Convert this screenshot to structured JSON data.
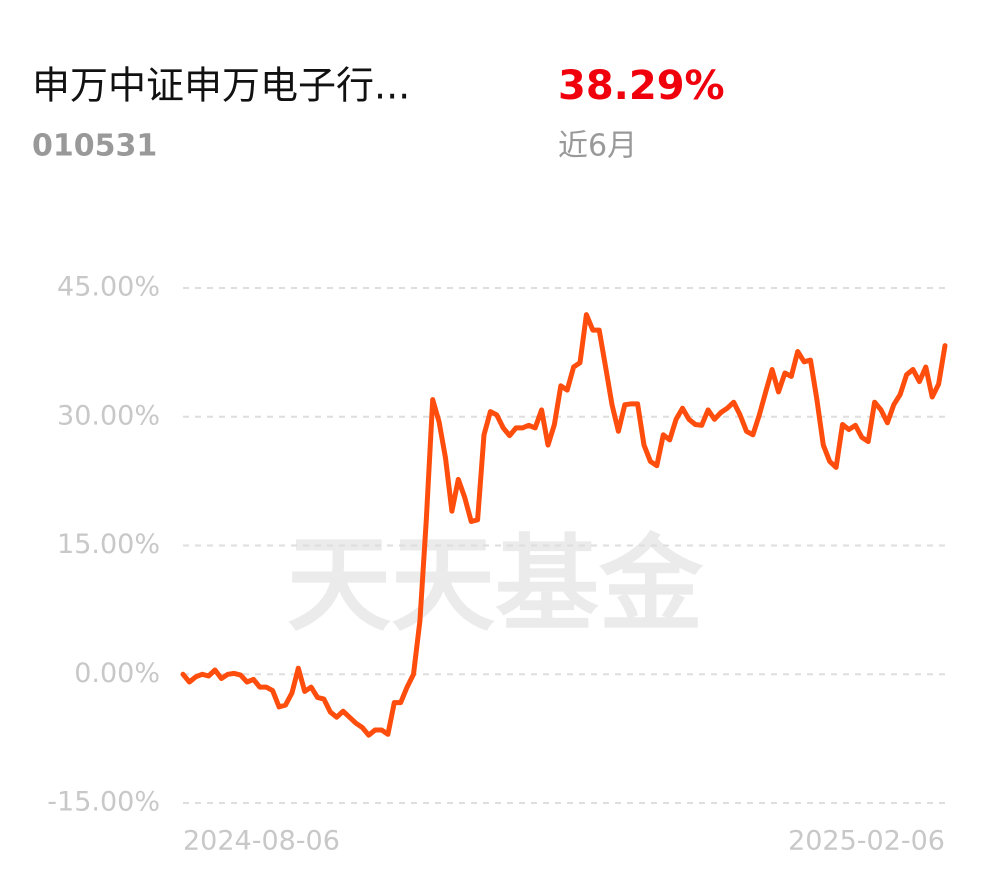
{
  "header": {
    "title": "申万中证申万电子行...",
    "code": "010531",
    "return": "38.29%",
    "period": "近6月"
  },
  "chart_data": {
    "type": "line",
    "watermark": "天天基金",
    "categories": [
      "2024-08-06",
      null,
      null,
      null,
      null,
      null,
      null,
      null,
      null,
      null,
      null,
      null,
      null,
      null,
      null,
      null,
      null,
      null,
      null,
      null,
      null,
      null,
      null,
      null,
      null,
      null,
      null,
      null,
      null,
      null,
      null,
      null,
      null,
      null,
      null,
      null,
      null,
      null,
      null,
      null,
      null,
      null,
      null,
      null,
      null,
      null,
      null,
      null,
      null,
      null,
      null,
      null,
      null,
      null,
      null,
      null,
      null,
      null,
      null,
      null,
      null,
      null,
      null,
      null,
      null,
      null,
      null,
      null,
      null,
      null,
      null,
      null,
      null,
      null,
      null,
      null,
      null,
      null,
      null,
      null,
      null,
      null,
      null,
      null,
      null,
      null,
      null,
      null,
      null,
      null,
      null,
      null,
      null,
      null,
      null,
      null,
      null,
      null,
      null,
      null,
      null,
      null,
      null,
      null,
      null,
      null,
      null,
      null,
      null,
      null,
      null,
      null,
      null,
      null,
      null,
      null,
      null,
      null,
      null,
      "2025-02-06"
    ],
    "values": [
      0,
      -0.9,
      -0.3,
      0,
      -0.2,
      0.5,
      -0.5,
      0,
      0.1,
      -0.1,
      -0.9,
      -0.6,
      -1.5,
      -1.5,
      -1.9,
      -3.8,
      -3.6,
      -2.2,
      0.7,
      -2.0,
      -1.5,
      -2.7,
      -2.9,
      -4.4,
      -5.0,
      -4.3,
      -5.0,
      -5.7,
      -6.2,
      -7.1,
      -6.5,
      -6.5,
      -7.0,
      -3.3,
      -3.3,
      -1.5,
      0,
      6.2,
      18.0,
      32.0,
      29.4,
      25.2,
      19.0,
      22.7,
      20.6,
      17.8,
      18.0,
      27.9,
      30.6,
      30.2,
      28.7,
      27.8,
      28.7,
      28.7,
      29.0,
      28.7,
      30.8,
      26.7,
      29.1,
      33.6,
      33.1,
      35.8,
      36.3,
      41.9,
      40.1,
      40.1,
      35.8,
      31.4,
      28.3,
      31.4,
      31.5,
      31.5,
      26.7,
      24.8,
      24.3,
      27.9,
      27.3,
      29.7,
      31.0,
      29.7,
      29.1,
      29.0,
      30.8,
      29.7,
      30.5,
      31.0,
      31.7,
      30.2,
      28.3,
      27.9,
      30.2,
      32.9,
      35.5,
      32.9,
      35.1,
      34.7,
      37.6,
      36.4,
      36.6,
      32.0,
      26.7,
      24.8,
      24.1,
      29.1,
      28.5,
      29.0,
      27.6,
      27.1,
      31.7,
      30.8,
      29.3,
      31.4,
      32.6,
      34.9,
      35.5,
      34.1,
      35.8,
      32.3,
      33.8,
      38.29
    ],
    "color": "#ff4d0d",
    "ylim": [
      -15,
      45
    ],
    "yticks": [
      {
        "value": -15,
        "label": "-15.00%"
      },
      {
        "value": 0,
        "label": "0.00%"
      },
      {
        "value": 15,
        "label": "15.00%"
      },
      {
        "value": 30,
        "label": "30.00%"
      },
      {
        "value": 45,
        "label": "45.00%"
      }
    ],
    "grid": true
  }
}
